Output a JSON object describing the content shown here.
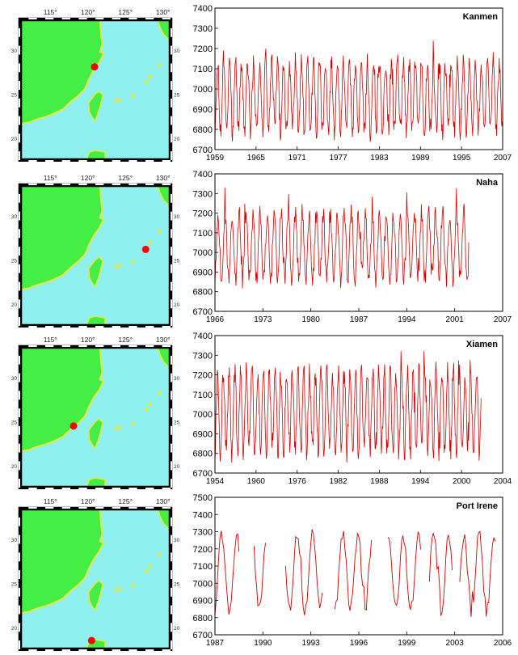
{
  "panels": [
    {
      "map": {
        "lon_labels": [
          "115°",
          "120°",
          "125°",
          "130°"
        ],
        "lat_labels": [
          "30",
          "25",
          "20"
        ],
        "station_lon": 120.9,
        "station_lat": 28.1
      },
      "chart_data": {
        "type": "line",
        "title": "Kanmen",
        "x_ticks": [
          "1959",
          "1965",
          "1971",
          "1977",
          "1983",
          "1989",
          "1995",
          "2007"
        ],
        "ylim": [
          6700,
          7400
        ],
        "y_ticks": [
          "7400",
          "7300",
          "7200",
          "7100",
          "7000",
          "6900",
          "6800",
          "6700"
        ],
        "series": [
          {
            "x_range": [
              1959,
              2007
            ],
            "seasonal_mean": 6960,
            "seasonal_amplitude": 170,
            "noise": 55,
            "gaps": []
          }
        ]
      }
    },
    {
      "map": {
        "lon_labels": [
          "115°",
          "120°",
          "125°",
          "130°"
        ],
        "lat_labels": [
          "30",
          "25",
          "20"
        ],
        "station_lon": 127.7,
        "station_lat": 26.2
      },
      "chart_data": {
        "type": "line",
        "title": "Naha",
        "x_ticks": [
          "1966",
          "1973",
          "1980",
          "1987",
          "1994",
          "2001",
          "2007"
        ],
        "ylim": [
          6700,
          7400
        ],
        "y_ticks": [
          "7400",
          "7300",
          "7200",
          "7100",
          "7000",
          "6900",
          "6800",
          "6700"
        ],
        "series": [
          {
            "x_range": [
              1966,
              2002.2
            ],
            "seasonal_mean": 7030,
            "seasonal_amplitude": 170,
            "noise": 50,
            "gaps": []
          }
        ]
      }
    },
    {
      "map": {
        "lon_labels": [
          "115°",
          "120°",
          "125°",
          "130°"
        ],
        "lat_labels": [
          "30",
          "25",
          "20"
        ],
        "station_lon": 118.1,
        "station_lat": 24.5
      },
      "chart_data": {
        "type": "line",
        "title": "Xiamen",
        "x_ticks": [
          "1954",
          "1960",
          "1976",
          "1982",
          "1988",
          "1994",
          "2000",
          "2004"
        ],
        "ylim": [
          6700,
          7400
        ],
        "y_ticks": [
          "7400",
          "7300",
          "7200",
          "7100",
          "7000",
          "6900",
          "6800",
          "6700"
        ],
        "series": [
          {
            "x_range": [
              1954,
              2000.3
            ],
            "seasonal_mean": 7010,
            "seasonal_amplitude": 200,
            "noise": 60,
            "gaps": []
          }
        ]
      }
    },
    {
      "map": {
        "lon_labels": [
          "115°",
          "120°",
          "125°",
          "130°"
        ],
        "lat_labels": [
          "30",
          "25",
          "20"
        ],
        "station_lon": 120.5,
        "station_lat": 18.5
      },
      "chart_data": {
        "type": "line",
        "title": "Port Irene",
        "x_ticks": [
          "1987",
          "1990",
          "1993",
          "1996",
          "1999",
          "2003",
          "2006"
        ],
        "ylim": [
          6700,
          7500
        ],
        "y_ticks": [
          "7500",
          "7400",
          "7300",
          "7200",
          "7100",
          "7000",
          "6900",
          "6800",
          "6700"
        ],
        "series": [
          {
            "x_range": [
              1987,
              2005.5
            ],
            "seasonal_mean": 7060,
            "seasonal_amplitude": 220,
            "noise": 40,
            "gaps": [
              [
                1988.6,
                1989.5
              ],
              [
                1990.4,
                1991.6
              ],
              [
                1994.1,
                1994.9
              ],
              [
                1997.4,
                1998.4
              ],
              [
                2000.6,
                2001.1
              ],
              [
                2002.7,
                2003.1
              ]
            ]
          }
        ]
      }
    }
  ],
  "colors": {
    "land": "#44ee44",
    "sea": "#8ff0f0",
    "coast": "#e8e83a",
    "dot": "#ff0000",
    "line": "#d40000"
  }
}
